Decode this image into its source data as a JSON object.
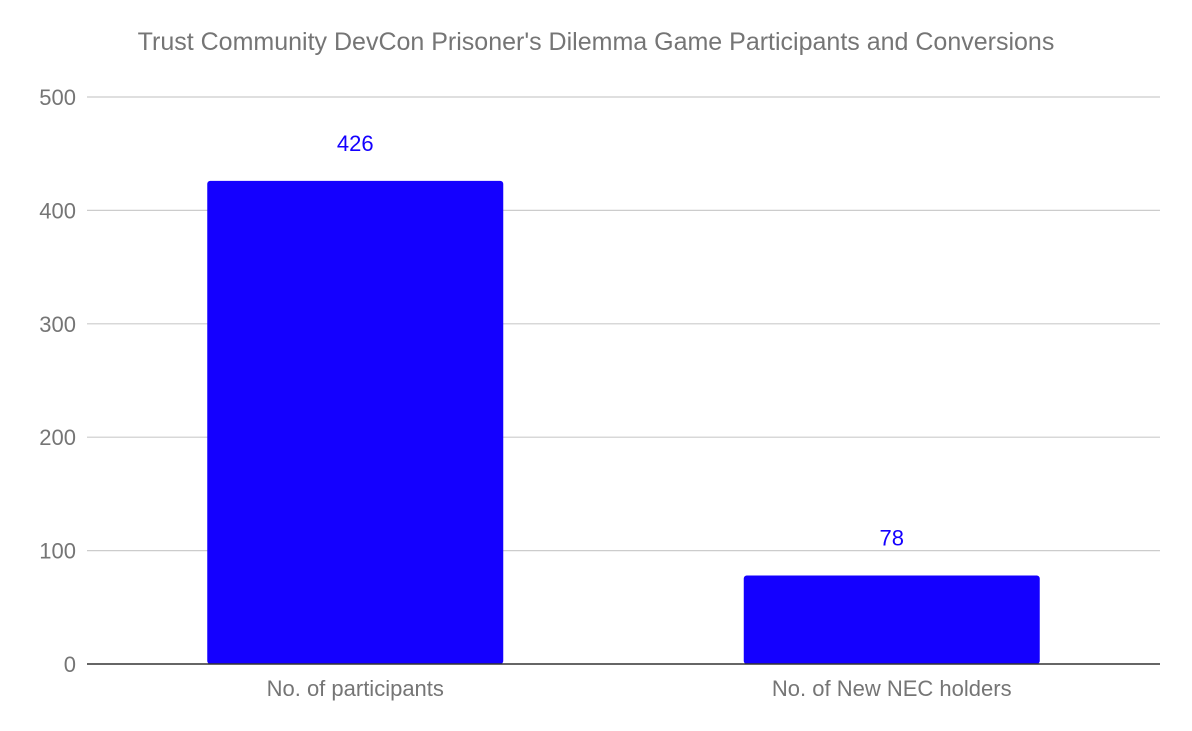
{
  "chart_data": {
    "type": "bar",
    "title": "Trust Community DevCon Prisoner's Dilemma Game Participants and Conversions",
    "xlabel": "",
    "ylabel": "",
    "categories": [
      "No. of participants",
      "No. of New NEC holders"
    ],
    "values": [
      426,
      78
    ],
    "data_labels": [
      "426",
      "78"
    ],
    "ylim": [
      0,
      500
    ],
    "yticks": [
      0,
      100,
      200,
      300,
      400,
      500
    ],
    "ytick_labels": [
      "0",
      "100",
      "200",
      "300",
      "400",
      "500"
    ],
    "grid": true,
    "legend": "none",
    "colors": {
      "bar": "#1400ff",
      "data_label": "#1400ff",
      "grid": "#cccccc",
      "axis": "#333333",
      "text": "#757575"
    }
  }
}
